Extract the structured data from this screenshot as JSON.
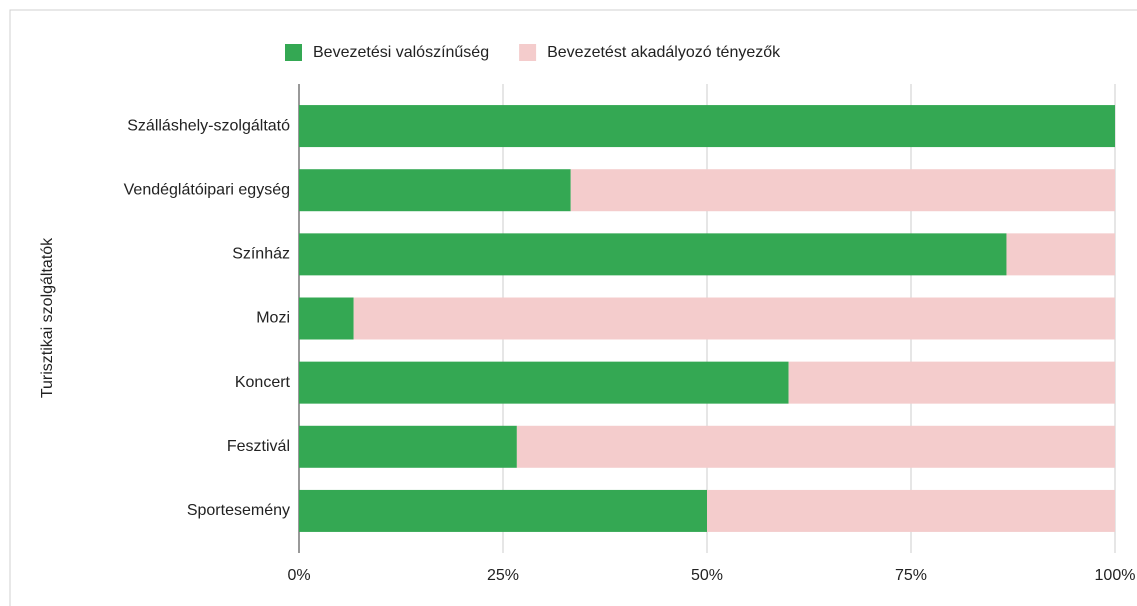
{
  "chart_data": {
    "type": "bar",
    "orientation": "horizontal",
    "stacked": true,
    "y_label": "Turisztikai szolgáltatók",
    "categories": [
      "Szálláshely-szolgáltató",
      "Vendéglátóipari egység",
      "Színház",
      "Mozi",
      "Koncert",
      "Fesztivál",
      "Sportesemény"
    ],
    "series": [
      {
        "name": "Bevezetési valószínűség",
        "color": "#34a853",
        "values": [
          100,
          33.3,
          86.7,
          6.7,
          60,
          26.7,
          50
        ]
      },
      {
        "name": "Bevezetést akadályozó tényezők",
        "color": "#f4cccc",
        "values": [
          0,
          66.7,
          13.3,
          93.3,
          40,
          73.3,
          50
        ]
      }
    ],
    "xlim": [
      0,
      100
    ],
    "xticks": [
      {
        "value": 0,
        "label": "0%"
      },
      {
        "value": 25,
        "label": "25%"
      },
      {
        "value": 50,
        "label": "50%"
      },
      {
        "value": 75,
        "label": "75%"
      },
      {
        "value": 100,
        "label": "100%"
      }
    ],
    "grid": true,
    "legend": "top"
  }
}
